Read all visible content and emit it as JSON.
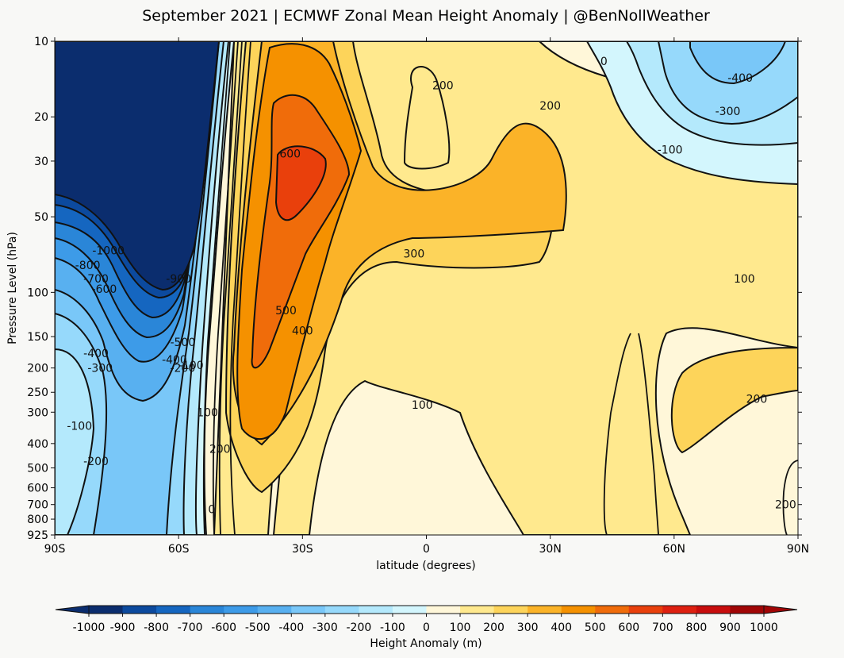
{
  "chart_data": {
    "type": "contour",
    "title": "September 2021 | ECMWF Zonal Mean Height Anomaly | @BenNollWeather",
    "xlabel": "latitude (degrees)",
    "ylabel": "Pressure Level (hPa)",
    "x_ticks": [
      "90S",
      "60S",
      "30S",
      "0",
      "30N",
      "60N",
      "90N"
    ],
    "x_tick_values": [
      -90,
      -60,
      -30,
      0,
      30,
      60,
      90
    ],
    "xlim": [
      -90,
      90
    ],
    "y_ticks": [
      10,
      20,
      30,
      50,
      100,
      150,
      200,
      250,
      300,
      400,
      500,
      600,
      700,
      800,
      925
    ],
    "ylim": [
      925,
      10
    ],
    "y_scale": "log",
    "colorbar": {
      "label": "Height Anomaly (m)",
      "tick_values": [
        -1000,
        -900,
        -800,
        -700,
        -600,
        -500,
        -400,
        -300,
        -200,
        -100,
        0,
        100,
        200,
        300,
        400,
        500,
        600,
        700,
        800,
        900,
        1000
      ],
      "tick_labels": [
        "-1000",
        "-900",
        "-800",
        "-700",
        "-600",
        "-500",
        "-400",
        "-300",
        "-200",
        "-100",
        "0",
        "100",
        "200",
        "300",
        "400",
        "500",
        "600",
        "700",
        "800",
        "900",
        "1000"
      ],
      "colors": [
        "#0b2d6e",
        "#0c4a9e",
        "#1566c0",
        "#2a86d8",
        "#3d9be8",
        "#58b0f0",
        "#79c7f8",
        "#96d9fb",
        "#b4e9fc",
        "#d3f6fd",
        "#eefcfd",
        "#fff7d9",
        "#ffe98e",
        "#fdd45a",
        "#fbb328",
        "#f59100",
        "#f06c0a",
        "#e9400c",
        "#de2010",
        "#c80d0d",
        "#a10606"
      ]
    },
    "contour_labels": [
      {
        "text": "-1000",
        "lat": -77,
        "p": 68
      },
      {
        "text": "-800",
        "lat": -82,
        "p": 78
      },
      {
        "text": "-700",
        "lat": -80,
        "p": 88
      },
      {
        "text": "-600",
        "lat": -78,
        "p": 97
      },
      {
        "text": "-900",
        "lat": -60,
        "p": 88
      },
      {
        "text": "-500",
        "lat": -59,
        "p": 158
      },
      {
        "text": "-400",
        "lat": -80,
        "p": 175
      },
      {
        "text": "-300",
        "lat": -79,
        "p": 200
      },
      {
        "text": "-400",
        "lat": -61,
        "p": 185
      },
      {
        "text": "-200",
        "lat": -59,
        "p": 200
      },
      {
        "text": "-100",
        "lat": -57,
        "p": 195
      },
      {
        "text": "-100",
        "lat": -84,
        "p": 340
      },
      {
        "text": "-200",
        "lat": -80,
        "p": 470
      },
      {
        "text": "100",
        "lat": -53,
        "p": 300
      },
      {
        "text": "200",
        "lat": -50,
        "p": 420
      },
      {
        "text": "0",
        "lat": -52,
        "p": 730
      },
      {
        "text": "600",
        "lat": -33,
        "p": 28
      },
      {
        "text": "500",
        "lat": -34,
        "p": 118
      },
      {
        "text": "400",
        "lat": -30,
        "p": 142
      },
      {
        "text": "200",
        "lat": 4,
        "p": 15
      },
      {
        "text": "300",
        "lat": -3,
        "p": 70
      },
      {
        "text": "100",
        "lat": -1,
        "p": 280
      },
      {
        "text": "200",
        "lat": 30,
        "p": 18
      },
      {
        "text": "0",
        "lat": 43,
        "p": 12
      },
      {
        "text": "-400",
        "lat": 76,
        "p": 14
      },
      {
        "text": "-300",
        "lat": 73,
        "p": 19
      },
      {
        "text": "-100",
        "lat": 59,
        "p": 27
      },
      {
        "text": "100",
        "lat": 77,
        "p": 88
      },
      {
        "text": "200",
        "lat": 80,
        "p": 265
      },
      {
        "text": "200",
        "lat": 87,
        "p": 700
      }
    ]
  }
}
